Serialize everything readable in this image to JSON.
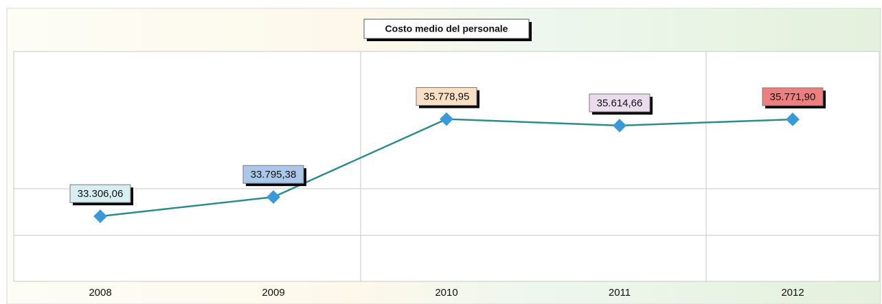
{
  "chart_data": {
    "type": "line",
    "title": "Costo medio del personale",
    "categories": [
      "2008",
      "2009",
      "2010",
      "2011",
      "2012"
    ],
    "series": [
      {
        "color": "#2e8b8b",
        "marker_color": "#3a9ad9",
        "values": [
          33306.06,
          33795.38,
          35778.95,
          35614.66,
          35771.9
        ],
        "value_labels": [
          "33.306,06",
          "33.795,38",
          "35.778,95",
          "35.614,66",
          "35.771,90"
        ],
        "label_colors": [
          "#d8eef2",
          "#a9c8ea",
          "#f9dfc4",
          "#eadcec",
          "#ef7f7f"
        ]
      }
    ],
    "ylim": [
      31650,
      37500
    ]
  }
}
